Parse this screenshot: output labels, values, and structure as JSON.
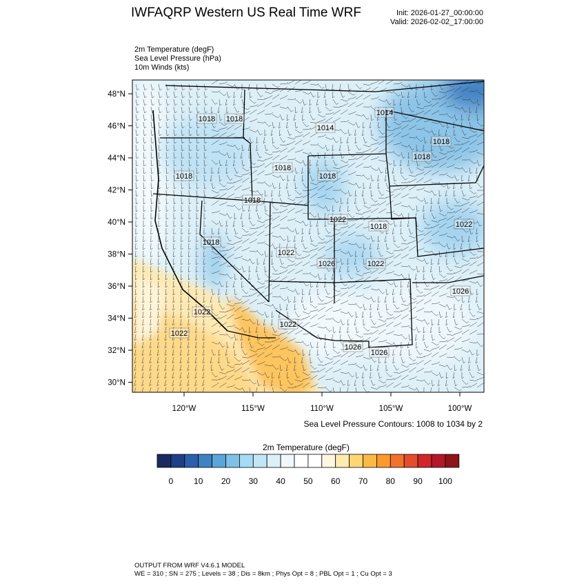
{
  "header": {
    "title": "IWFAQRP Western US Real Time WRF",
    "init": "Init: 2026-01-27_00:00:00",
    "valid": "Valid: 2026-02-02_17:00:00"
  },
  "fields": [
    "2m Temperature   (degF)",
    "Sea Level Pressure   (hPa)",
    "10m Winds   (kts)"
  ],
  "map": {
    "lat_ticks": [
      "48°N",
      "46°N",
      "44°N",
      "42°N",
      "40°N",
      "38°N",
      "36°N",
      "34°N",
      "32°N",
      "30°N"
    ],
    "lon_ticks": [
      "120°W",
      "115°W",
      "110°W",
      "105°W",
      "100°W"
    ],
    "pressure_labels": [
      "1018",
      "1018",
      "1014",
      "1014",
      "1018",
      "1018",
      "1018",
      "1018",
      "1018",
      "1018",
      "1022",
      "1018",
      "1022",
      "1018",
      "1022",
      "1026",
      "1022",
      "1026",
      "1022",
      "1022",
      "1022",
      "1026",
      "1026"
    ],
    "contour_note": "Sea Level Pressure Contours: 1008 to 1034 by 2"
  },
  "colorbar": {
    "title": "2m Temperature  (degF)",
    "labels": [
      "0",
      "10",
      "20",
      "30",
      "40",
      "50",
      "60",
      "70",
      "80",
      "90",
      "100"
    ],
    "colors": [
      "#1b2a5e",
      "#1f3f86",
      "#2a5fad",
      "#3f82c4",
      "#5aa5da",
      "#7fc0e6",
      "#a4dcf5",
      "#c4e5f5",
      "#ddf0f8",
      "#f0f8fc",
      "#ffffff",
      "#ffffff",
      "#fff7e0",
      "#feebb0",
      "#fed673",
      "#fdb945",
      "#fb9a2c",
      "#f3722b",
      "#e44d2b",
      "#d3262a",
      "#b3182a",
      "#8e1419"
    ]
  },
  "footer": {
    "line1": "OUTPUT FROM WRF V4.6.1 MODEL",
    "line2": "WE = 310 ; SN = 275 ; Levels = 38 ; Dis = 8km ; Phys Opt = 8 ; PBL Opt = 1 ; Cu Opt = 3"
  }
}
